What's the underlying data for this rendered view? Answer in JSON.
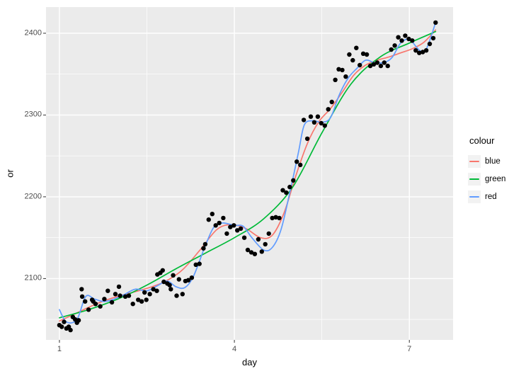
{
  "figure": {
    "background": "#FFFFFF",
    "panel_background": "#EBEBEB",
    "grid_color": "#FFFFFF",
    "tick_color": "#333333",
    "tick_label_color": "#4D4D4D",
    "point_color": "#000000"
  },
  "chart_data": {
    "type": "scatter",
    "title": "",
    "xlabel": "day",
    "ylabel": "or",
    "grid": true,
    "legend_position": "right",
    "x_range": [
      0.77,
      7.75
    ],
    "y_range": [
      2025,
      2432
    ],
    "x_ticks": [
      1,
      4,
      7
    ],
    "x_tick_labels": [
      "1",
      "4",
      "7"
    ],
    "x_minor_ticks": [
      2.5,
      5.5
    ],
    "y_ticks": [
      2100,
      2200,
      2300,
      2400
    ],
    "y_tick_labels": [
      "2100",
      "2200",
      "2300",
      "2400"
    ],
    "y_minor_ticks": [
      2050,
      2150,
      2250,
      2350
    ],
    "points": [
      [
        1.0,
        2043
      ],
      [
        1.04,
        2041
      ],
      [
        1.08,
        2047
      ],
      [
        1.12,
        2039
      ],
      [
        1.16,
        2041
      ],
      [
        1.19,
        2037
      ],
      [
        1.23,
        2053
      ],
      [
        1.27,
        2050
      ],
      [
        1.3,
        2046
      ],
      [
        1.33,
        2049
      ],
      [
        1.38,
        2087
      ],
      [
        1.39,
        2078
      ],
      [
        1.44,
        2072
      ],
      [
        1.5,
        2062
      ],
      [
        1.56,
        2074
      ],
      [
        1.58,
        2072
      ],
      [
        1.62,
        2069
      ],
      [
        1.7,
        2066
      ],
      [
        1.77,
        2075
      ],
      [
        1.83,
        2085
      ],
      [
        1.9,
        2071
      ],
      [
        1.96,
        2081
      ],
      [
        2.02,
        2090
      ],
      [
        2.04,
        2079
      ],
      [
        2.13,
        2078
      ],
      [
        2.19,
        2079
      ],
      [
        2.26,
        2069
      ],
      [
        2.35,
        2074
      ],
      [
        2.41,
        2072
      ],
      [
        2.46,
        2083
      ],
      [
        2.49,
        2074
      ],
      [
        2.55,
        2081
      ],
      [
        2.61,
        2087
      ],
      [
        2.67,
        2085
      ],
      [
        2.68,
        2105
      ],
      [
        2.73,
        2107
      ],
      [
        2.77,
        2110
      ],
      [
        2.79,
        2096
      ],
      [
        2.85,
        2094
      ],
      [
        2.89,
        2092
      ],
      [
        2.91,
        2087
      ],
      [
        2.95,
        2104
      ],
      [
        3.01,
        2079
      ],
      [
        3.05,
        2099
      ],
      [
        3.11,
        2081
      ],
      [
        3.16,
        2097
      ],
      [
        3.21,
        2098
      ],
      [
        3.27,
        2101
      ],
      [
        3.34,
        2117
      ],
      [
        3.4,
        2118
      ],
      [
        3.47,
        2137
      ],
      [
        3.5,
        2142
      ],
      [
        3.56,
        2172
      ],
      [
        3.62,
        2179
      ],
      [
        3.68,
        2165
      ],
      [
        3.74,
        2168
      ],
      [
        3.81,
        2174
      ],
      [
        3.87,
        2155
      ],
      [
        3.93,
        2163
      ],
      [
        3.99,
        2165
      ],
      [
        4.05,
        2159
      ],
      [
        4.11,
        2161
      ],
      [
        4.17,
        2150
      ],
      [
        4.23,
        2135
      ],
      [
        4.29,
        2132
      ],
      [
        4.35,
        2130
      ],
      [
        4.41,
        2148
      ],
      [
        4.47,
        2133
      ],
      [
        4.53,
        2142
      ],
      [
        4.59,
        2155
      ],
      [
        4.65,
        2174
      ],
      [
        4.71,
        2175
      ],
      [
        4.77,
        2174
      ],
      [
        4.83,
        2208
      ],
      [
        4.89,
        2205
      ],
      [
        4.95,
        2212
      ],
      [
        5.01,
        2220
      ],
      [
        5.07,
        2243
      ],
      [
        5.13,
        2239
      ],
      [
        5.19,
        2294
      ],
      [
        5.25,
        2271
      ],
      [
        5.31,
        2298
      ],
      [
        5.37,
        2291
      ],
      [
        5.43,
        2298
      ],
      [
        5.49,
        2290
      ],
      [
        5.55,
        2287
      ],
      [
        5.61,
        2307
      ],
      [
        5.67,
        2316
      ],
      [
        5.73,
        2343
      ],
      [
        5.79,
        2356
      ],
      [
        5.85,
        2355
      ],
      [
        5.91,
        2347
      ],
      [
        5.97,
        2374
      ],
      [
        6.03,
        2367
      ],
      [
        6.09,
        2382
      ],
      [
        6.15,
        2361
      ],
      [
        6.21,
        2375
      ],
      [
        6.27,
        2374
      ],
      [
        6.33,
        2360
      ],
      [
        6.39,
        2362
      ],
      [
        6.45,
        2364
      ],
      [
        6.51,
        2360
      ],
      [
        6.57,
        2364
      ],
      [
        6.63,
        2360
      ],
      [
        6.69,
        2380
      ],
      [
        6.75,
        2385
      ],
      [
        6.81,
        2395
      ],
      [
        6.87,
        2391
      ],
      [
        6.93,
        2397
      ],
      [
        6.99,
        2393
      ],
      [
        7.05,
        2391
      ],
      [
        7.11,
        2379
      ],
      [
        7.17,
        2376
      ],
      [
        7.23,
        2377
      ],
      [
        7.29,
        2379
      ],
      [
        7.35,
        2387
      ],
      [
        7.41,
        2394
      ],
      [
        7.45,
        2413
      ]
    ],
    "smooth_series": [
      {
        "name": "blue",
        "color": "#F8766D",
        "points": [
          [
            1.0,
            2048
          ],
          [
            1.3,
            2058
          ],
          [
            1.6,
            2068
          ],
          [
            1.9,
            2076
          ],
          [
            2.2,
            2082
          ],
          [
            2.5,
            2088
          ],
          [
            2.8,
            2096
          ],
          [
            3.1,
            2110
          ],
          [
            3.4,
            2134
          ],
          [
            3.7,
            2160
          ],
          [
            3.95,
            2166
          ],
          [
            4.2,
            2161
          ],
          [
            4.45,
            2150
          ],
          [
            4.65,
            2153
          ],
          [
            4.85,
            2180
          ],
          [
            5.05,
            2225
          ],
          [
            5.25,
            2265
          ],
          [
            5.45,
            2292
          ],
          [
            5.65,
            2308
          ],
          [
            5.85,
            2328
          ],
          [
            6.05,
            2349
          ],
          [
            6.25,
            2361
          ],
          [
            6.45,
            2367
          ],
          [
            6.65,
            2371
          ],
          [
            6.85,
            2376
          ],
          [
            7.05,
            2381
          ],
          [
            7.25,
            2389
          ],
          [
            7.45,
            2404
          ]
        ]
      },
      {
        "name": "green",
        "color": "#00BA38",
        "points": [
          [
            1.0,
            2052
          ],
          [
            1.5,
            2062
          ],
          [
            2.0,
            2075
          ],
          [
            2.5,
            2092
          ],
          [
            3.0,
            2112
          ],
          [
            3.5,
            2131
          ],
          [
            4.0,
            2150
          ],
          [
            4.5,
            2173
          ],
          [
            5.0,
            2212
          ],
          [
            5.5,
            2278
          ],
          [
            6.0,
            2338
          ],
          [
            6.5,
            2371
          ],
          [
            7.0,
            2388
          ],
          [
            7.45,
            2402
          ]
        ]
      },
      {
        "name": "red",
        "color": "#619CFF",
        "points": [
          [
            1.0,
            2062
          ],
          [
            1.12,
            2047
          ],
          [
            1.3,
            2050
          ],
          [
            1.45,
            2078
          ],
          [
            1.6,
            2075
          ],
          [
            1.75,
            2072
          ],
          [
            1.9,
            2074
          ],
          [
            2.1,
            2080
          ],
          [
            2.3,
            2087
          ],
          [
            2.5,
            2085
          ],
          [
            2.7,
            2092
          ],
          [
            2.85,
            2097
          ],
          [
            3.0,
            2090
          ],
          [
            3.15,
            2089
          ],
          [
            3.3,
            2103
          ],
          [
            3.5,
            2140
          ],
          [
            3.65,
            2163
          ],
          [
            3.8,
            2168
          ],
          [
            4.0,
            2165
          ],
          [
            4.15,
            2164
          ],
          [
            4.3,
            2150
          ],
          [
            4.5,
            2135
          ],
          [
            4.65,
            2138
          ],
          [
            4.8,
            2160
          ],
          [
            4.95,
            2205
          ],
          [
            5.1,
            2255
          ],
          [
            5.2,
            2288
          ],
          [
            5.35,
            2293
          ],
          [
            5.5,
            2291
          ],
          [
            5.65,
            2297
          ],
          [
            5.8,
            2325
          ],
          [
            5.95,
            2345
          ],
          [
            6.1,
            2357
          ],
          [
            6.25,
            2367
          ],
          [
            6.4,
            2364
          ],
          [
            6.55,
            2364
          ],
          [
            6.7,
            2370
          ],
          [
            6.85,
            2388
          ],
          [
            7.0,
            2393
          ],
          [
            7.1,
            2385
          ],
          [
            7.2,
            2378
          ],
          [
            7.3,
            2382
          ],
          [
            7.45,
            2413
          ]
        ]
      }
    ]
  },
  "legend": {
    "title": "colour",
    "items": [
      {
        "label": "blue",
        "color": "#F8766D"
      },
      {
        "label": "green",
        "color": "#00BA38"
      },
      {
        "label": "red",
        "color": "#619CFF"
      }
    ]
  }
}
